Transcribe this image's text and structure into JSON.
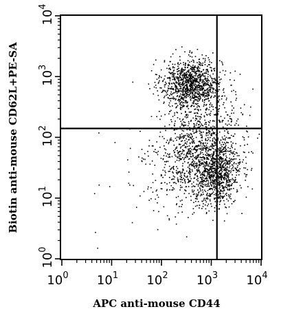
{
  "chart_data": {
    "type": "scatter",
    "title": "",
    "xlabel": "APC anti-mouse CD44",
    "ylabel": "Biotin anti-mouse CD62L+PE-SA",
    "xscale": "log",
    "yscale": "log",
    "xlim": [
      1,
      10000
    ],
    "ylim": [
      1,
      10000
    ],
    "x_ticks": [
      {
        "value": 1,
        "base": "10",
        "exp": "0"
      },
      {
        "value": 10,
        "base": "10",
        "exp": "1"
      },
      {
        "value": 100,
        "base": "10",
        "exp": "2"
      },
      {
        "value": 1000,
        "base": "10",
        "exp": "3"
      },
      {
        "value": 10000,
        "base": "10",
        "exp": "4"
      }
    ],
    "y_ticks": [
      {
        "value": 1,
        "base": "10",
        "exp": "0"
      },
      {
        "value": 10,
        "base": "10",
        "exp": "1"
      },
      {
        "value": 100,
        "base": "10",
        "exp": "2"
      },
      {
        "value": 1000,
        "base": "10",
        "exp": "3"
      },
      {
        "value": 10000,
        "base": "10",
        "exp": "4"
      }
    ],
    "quadrant_gates": {
      "x": 1300,
      "y": 140
    },
    "populations": [
      {
        "cx": 400,
        "cy": 780,
        "sx_dec": 0.3,
        "sy_dec": 0.2,
        "n": 1100
      },
      {
        "cx": 1350,
        "cy": 25,
        "sx_dec": 0.22,
        "sy_dec": 0.25,
        "n": 650
      },
      {
        "cx": 500,
        "cy": 40,
        "sx_dec": 0.42,
        "sy_dec": 0.38,
        "n": 900
      },
      {
        "cx": 800,
        "cy": 160,
        "sx_dec": 0.4,
        "sy_dec": 0.3,
        "n": 280
      },
      {
        "cx": 60,
        "cy": 30,
        "sx_dec": 0.55,
        "sy_dec": 0.7,
        "n": 45
      }
    ],
    "grid": false,
    "point_color": "#000000"
  }
}
